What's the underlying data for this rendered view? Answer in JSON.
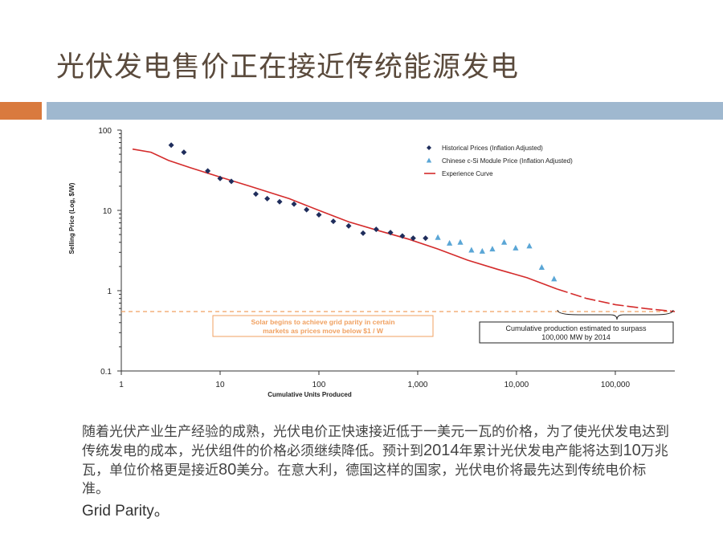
{
  "slide": {
    "title": "光伏发电售价正在接近传统能源发电",
    "body_parts": [
      "随着光伏产业生产经验的成熟，光伏电价正快速接近低于一美元一瓦的价格，为了使光伏发电达到传统发电的成本，光伏组件的价格必须继续降低。预计到",
      "2014",
      "年累计光伏发电产能将达到",
      "10",
      "万兆瓦，单位价格更是接近",
      "80",
      "美分。在意大利，德国这样的国家，光伏电价将最先达到传统电价标准。"
    ],
    "footer_term": "Grid Parity",
    "footer_punct": "。"
  },
  "colors": {
    "accent_orange": "#d97a3e",
    "accent_blue": "#9fb8cf",
    "historical": "#1f2d5c",
    "chinese": "#5aa6d6",
    "curve": "#d42b2b",
    "parity_line": "#f0a060"
  },
  "chart_data": {
    "type": "scatter",
    "xlabel": "Cumulative Units Produced",
    "ylabel": "Selling Price (Log, $/W)",
    "x_scale": "log",
    "y_scale": "log",
    "xlim": [
      1,
      400000
    ],
    "ylim": [
      0.1,
      100
    ],
    "x_ticks": [
      1,
      10,
      100,
      1000,
      10000,
      100000
    ],
    "x_tick_labels": [
      "1",
      "10",
      "100",
      "1,000",
      "10,000",
      "100,000"
    ],
    "y_ticks": [
      0.1,
      1,
      10,
      100
    ],
    "y_tick_labels": [
      "0.1",
      "1",
      "10",
      "100"
    ],
    "legend_position": "top-right",
    "series": [
      {
        "name": "Historical Prices (Inflation Adjusted)",
        "kind": "scatter",
        "marker": "diamond",
        "points": [
          [
            3.2,
            65
          ],
          [
            4.3,
            53
          ],
          [
            7.5,
            31
          ],
          [
            10,
            25
          ],
          [
            13,
            23
          ],
          [
            23,
            16
          ],
          [
            30,
            14
          ],
          [
            40,
            12.8
          ],
          [
            56,
            12
          ],
          [
            75,
            10.2
          ],
          [
            100,
            8.8
          ],
          [
            140,
            7.3
          ],
          [
            200,
            6.4
          ],
          [
            280,
            5.2
          ],
          [
            380,
            5.8
          ],
          [
            530,
            5.3
          ],
          [
            700,
            4.8
          ],
          [
            900,
            4.5
          ],
          [
            1200,
            4.5
          ]
        ]
      },
      {
        "name": "Chinese c-Si Module Price (Inflation Adjusted)",
        "kind": "scatter",
        "marker": "triangle",
        "points": [
          [
            1600,
            4.6
          ],
          [
            2100,
            3.9
          ],
          [
            2700,
            4.0
          ],
          [
            3500,
            3.2
          ],
          [
            4500,
            3.1
          ],
          [
            5700,
            3.3
          ],
          [
            7500,
            4.0
          ],
          [
            9800,
            3.4
          ],
          [
            13500,
            3.6
          ],
          [
            18000,
            1.95
          ],
          [
            24000,
            1.4
          ]
        ]
      },
      {
        "name": "Experience Curve",
        "kind": "line",
        "points": [
          [
            1.3,
            58
          ],
          [
            2,
            53
          ],
          [
            3,
            42
          ],
          [
            5,
            34
          ],
          [
            10,
            26
          ],
          [
            20,
            20
          ],
          [
            50,
            14
          ],
          [
            100,
            10
          ],
          [
            200,
            7.2
          ],
          [
            400,
            5.6
          ],
          [
            800,
            4.4
          ],
          [
            1600,
            3.3
          ],
          [
            3200,
            2.4
          ],
          [
            6400,
            1.85
          ],
          [
            12800,
            1.45
          ],
          [
            25600,
            1.05
          ]
        ]
      },
      {
        "name": "Experience Curve (projected)",
        "kind": "dashed-line",
        "points": [
          [
            25600,
            1.05
          ],
          [
            51200,
            0.8
          ],
          [
            100000,
            0.67
          ],
          [
            200000,
            0.6
          ],
          [
            400000,
            0.55
          ]
        ]
      }
    ],
    "parity_line_value": 0.55,
    "annotations": {
      "parity": [
        "Solar begins to achieve grid parity in certain",
        "markets as prices move below $1 / W"
      ],
      "production": [
        "Cumulative production estimated to surpass",
        "100,000 MW by 2014"
      ]
    }
  }
}
